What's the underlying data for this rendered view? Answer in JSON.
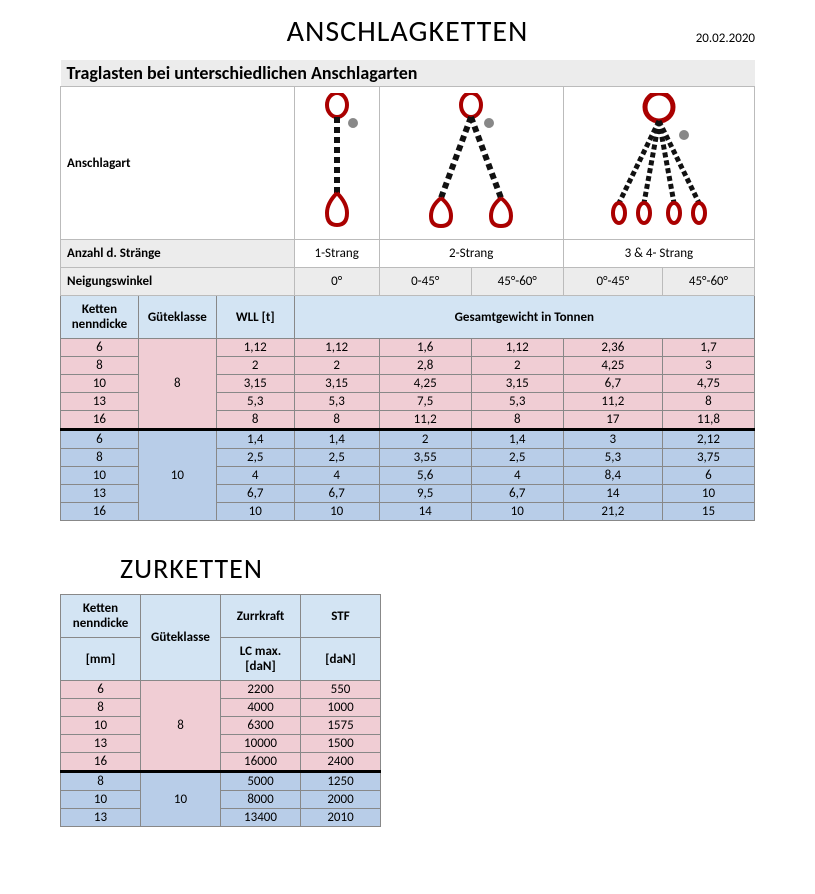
{
  "date": "20.02.2020",
  "main": {
    "title": "ANSCHLAGKETTEN",
    "subtitle": "Traglasten bei unterschiedlichen Anschlagarten",
    "row_anschlagart": "Anschlagart",
    "row_straenge": "Anzahl d. Stränge",
    "straenge": [
      "1-Strang",
      "2-Strang",
      "3 & 4- Strang"
    ],
    "row_winkel": "Neigungswinkel",
    "winkel": [
      "0°",
      "0-45°",
      "45°-60°",
      "0°-45°",
      "45°-60°"
    ],
    "col_headers": {
      "ketten": "Ketten\nnenndicke",
      "guete": "Güteklasse",
      "wll": "WLL [t]",
      "span": "Gesamtgewicht in Tonnen"
    },
    "group8": [
      {
        "d": "6",
        "wll": "1,12",
        "v": [
          "1,12",
          "1,6",
          "1,12",
          "2,36",
          "1,7"
        ]
      },
      {
        "d": "8",
        "wll": "2",
        "v": [
          "2",
          "2,8",
          "2",
          "4,25",
          "3"
        ]
      },
      {
        "d": "10",
        "wll": "3,15",
        "v": [
          "3,15",
          "4,25",
          "3,15",
          "6,7",
          "4,75"
        ]
      },
      {
        "d": "13",
        "wll": "5,3",
        "v": [
          "5,3",
          "7,5",
          "5,3",
          "11,2",
          "8"
        ]
      },
      {
        "d": "16",
        "wll": "8",
        "v": [
          "8",
          "11,2",
          "8",
          "17",
          "11,8"
        ]
      }
    ],
    "group10": [
      {
        "d": "6",
        "wll": "1,4",
        "v": [
          "1,4",
          "2",
          "1,4",
          "3",
          "2,12"
        ]
      },
      {
        "d": "8",
        "wll": "2,5",
        "v": [
          "2,5",
          "3,55",
          "2,5",
          "5,3",
          "3,75"
        ]
      },
      {
        "d": "10",
        "wll": "4",
        "v": [
          "4",
          "5,6",
          "4",
          "8,4",
          "6"
        ]
      },
      {
        "d": "13",
        "wll": "6,7",
        "v": [
          "6,7",
          "9,5",
          "6,7",
          "14",
          "10"
        ]
      },
      {
        "d": "16",
        "wll": "10",
        "v": [
          "10",
          "14",
          "10",
          "21,2",
          "15"
        ]
      }
    ]
  },
  "zur": {
    "title": "ZURKETTEN",
    "headers": {
      "ketten": "Ketten\nnenndicke",
      "mm": "[mm]",
      "guete": "Güteklasse",
      "zurr": "Zurrkraft",
      "lc": "LC max.\n[daN]",
      "stf": "STF",
      "dan": "[daN]"
    },
    "group8": [
      {
        "d": "6",
        "lc": "2200",
        "stf": "550"
      },
      {
        "d": "8",
        "lc": "4000",
        "stf": "1000"
      },
      {
        "d": "10",
        "lc": "6300",
        "stf": "1575"
      },
      {
        "d": "13",
        "lc": "10000",
        "stf": "1500"
      },
      {
        "d": "16",
        "lc": "16000",
        "stf": "2400"
      }
    ],
    "group10": [
      {
        "d": "8",
        "lc": "5000",
        "stf": "1250"
      },
      {
        "d": "10",
        "lc": "8000",
        "stf": "2000"
      },
      {
        "d": "13",
        "lc": "13400",
        "stf": "2010"
      }
    ]
  },
  "colors": {
    "pink": "#f0cdd4",
    "blue": "#b8cde8",
    "header_blue": "#d3e4f3",
    "grey": "#ececec"
  }
}
